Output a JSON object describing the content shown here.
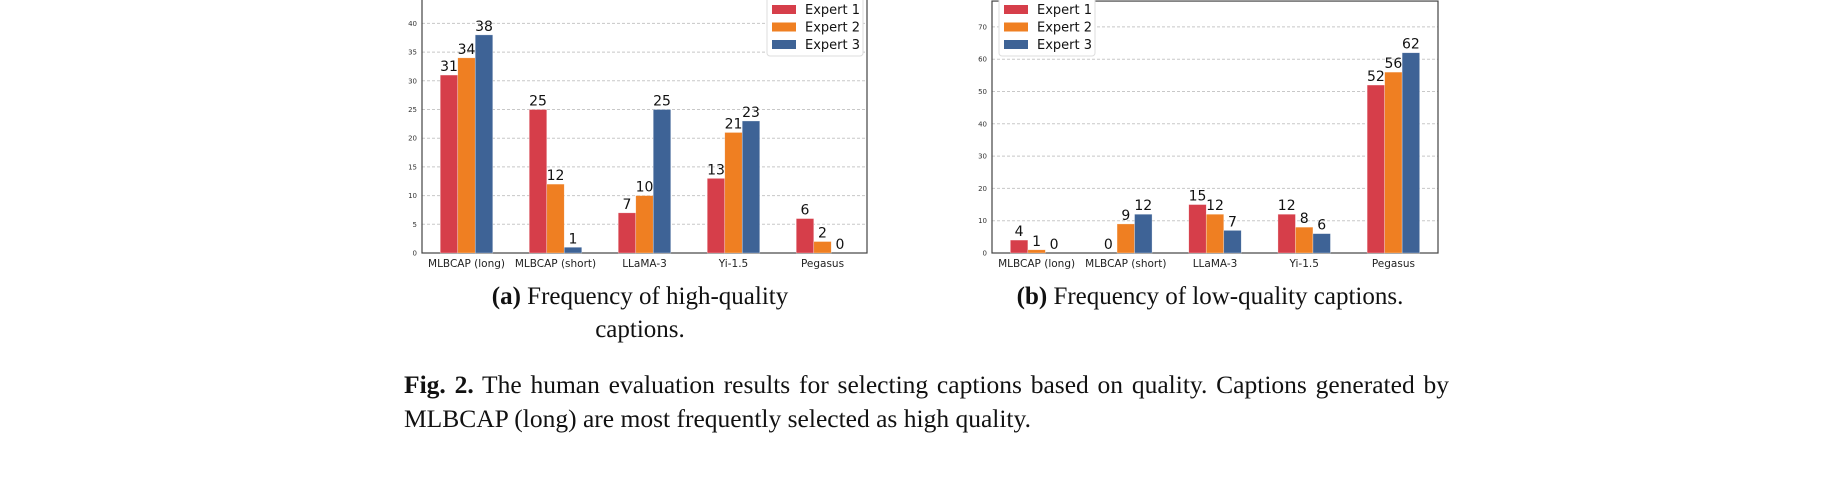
{
  "chart_data": [
    {
      "type": "bar",
      "categories": [
        "MLBCAP (long)",
        "MLBCAP (short)",
        "LLaMA-3",
        "Yi-1.5",
        "Pegasus"
      ],
      "series": [
        {
          "name": "Expert 1",
          "color": "#d63e4a",
          "values": [
            31,
            25,
            7,
            13,
            6
          ]
        },
        {
          "name": "Expert 2",
          "color": "#ef7f22",
          "values": [
            34,
            12,
            10,
            21,
            2
          ]
        },
        {
          "name": "Expert 3",
          "color": "#3e6396",
          "values": [
            38,
            1,
            25,
            23,
            0
          ]
        }
      ],
      "yticks": [
        0,
        5,
        10,
        15,
        20,
        25,
        30,
        35,
        40
      ],
      "ylim": [
        0,
        45
      ],
      "grid": true,
      "legend": "top-right",
      "caption_label": "(a)",
      "caption": "Frequency of high-quality captions."
    },
    {
      "type": "bar",
      "categories": [
        "MLBCAP (long)",
        "MLBCAP (short)",
        "LLaMA-3",
        "Yi-1.5",
        "Pegasus"
      ],
      "series": [
        {
          "name": "Expert 1",
          "color": "#d63e4a",
          "values": [
            4,
            0,
            15,
            12,
            52
          ]
        },
        {
          "name": "Expert 2",
          "color": "#ef7f22",
          "values": [
            1,
            9,
            12,
            8,
            56
          ]
        },
        {
          "name": "Expert 3",
          "color": "#3e6396",
          "values": [
            0,
            12,
            7,
            6,
            62
          ]
        }
      ],
      "yticks": [
        0,
        10,
        20,
        30,
        40,
        50,
        60,
        70
      ],
      "ylim": [
        0,
        78
      ],
      "grid": true,
      "legend": "top-left",
      "caption_label": "(b)",
      "caption": "Frequency of low-quality captions."
    }
  ],
  "figure_caption": {
    "label": "Fig. 2.",
    "text": "The human evaluation results for selecting captions based on quality. Captions generated by MLBCAP (long) are most frequently selected as high quality."
  }
}
